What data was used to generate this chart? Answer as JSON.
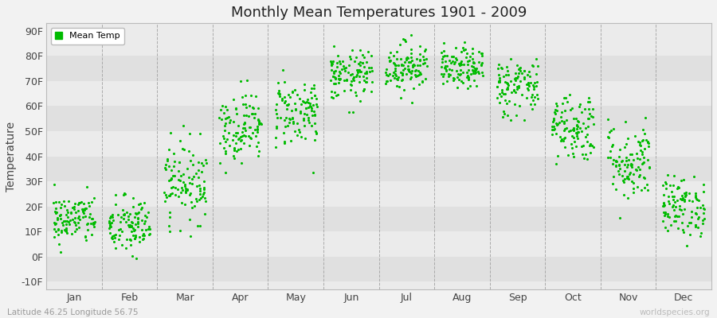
{
  "title": "Monthly Mean Temperatures 1901 - 2009",
  "ylabel": "Temperature",
  "ytick_labels": [
    "-10F",
    "0F",
    "10F",
    "20F",
    "30F",
    "40F",
    "50F",
    "60F",
    "70F",
    "80F",
    "90F"
  ],
  "ytick_values": [
    -10,
    0,
    10,
    20,
    30,
    40,
    50,
    60,
    70,
    80,
    90
  ],
  "ylim": [
    -13,
    93
  ],
  "month_labels": [
    "Jan",
    "Feb",
    "Mar",
    "Apr",
    "May",
    "Jun",
    "Jul",
    "Aug",
    "Sep",
    "Oct",
    "Nov",
    "Dec"
  ],
  "dot_color": "#00bb00",
  "bg_color": "#f2f2f2",
  "plot_bg_light": "#ebebeb",
  "plot_bg_dark": "#e0e0e0",
  "legend_label": "Mean Temp",
  "subtitle": "Latitude 46.25 Longitude 56.75",
  "watermark": "worldspecies.org",
  "num_years": 109,
  "monthly_means": [
    15,
    12,
    30,
    52,
    58,
    72,
    76,
    75,
    68,
    52,
    38,
    20
  ],
  "monthly_stds": [
    5,
    6,
    8,
    7,
    7,
    5,
    5,
    4,
    6,
    7,
    8,
    6
  ]
}
